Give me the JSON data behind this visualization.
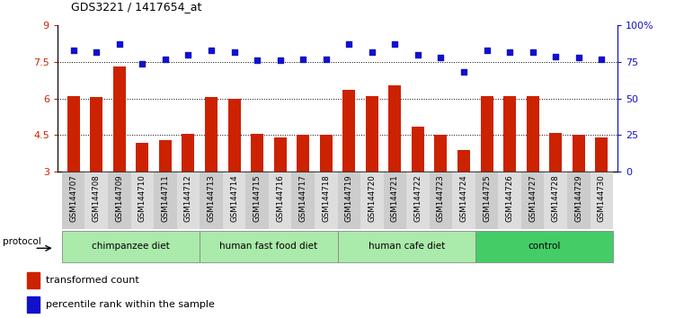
{
  "title": "GDS3221 / 1417654_at",
  "samples": [
    "GSM144707",
    "GSM144708",
    "GSM144709",
    "GSM144710",
    "GSM144711",
    "GSM144712",
    "GSM144713",
    "GSM144714",
    "GSM144715",
    "GSM144716",
    "GSM144717",
    "GSM144718",
    "GSM144719",
    "GSM144720",
    "GSM144721",
    "GSM144722",
    "GSM144723",
    "GSM144724",
    "GSM144725",
    "GSM144726",
    "GSM144727",
    "GSM144728",
    "GSM144729",
    "GSM144730"
  ],
  "red_values": [
    6.1,
    6.05,
    7.3,
    4.2,
    4.3,
    4.55,
    6.05,
    6.0,
    4.55,
    4.4,
    4.5,
    4.5,
    6.35,
    6.1,
    6.55,
    4.85,
    4.5,
    3.9,
    6.1,
    6.1,
    6.1,
    4.6,
    4.5,
    4.4
  ],
  "blue_values": [
    83,
    82,
    87,
    74,
    77,
    80,
    83,
    82,
    76,
    76,
    77,
    77,
    87,
    82,
    87,
    80,
    78,
    68,
    83,
    82,
    82,
    79,
    78,
    77
  ],
  "groups": [
    {
      "label": "chimpanzee diet",
      "start": 0,
      "end": 6
    },
    {
      "label": "human fast food diet",
      "start": 6,
      "end": 12
    },
    {
      "label": "human cafe diet",
      "start": 12,
      "end": 18
    },
    {
      "label": "control",
      "start": 18,
      "end": 24
    }
  ],
  "group_colors": [
    "#AAEAAA",
    "#AAEAAA",
    "#AAEAAA",
    "#44CC66"
  ],
  "ylim_left": [
    3,
    9
  ],
  "ylim_right": [
    0,
    100
  ],
  "yticks_left": [
    3,
    4.5,
    6,
    7.5,
    9
  ],
  "yticks_right": [
    0,
    25,
    50,
    75,
    100
  ],
  "ytick_labels_left": [
    "3",
    "4.5",
    "6",
    "7.5",
    "9"
  ],
  "ytick_labels_right": [
    "0",
    "25",
    "50",
    "75",
    "100%"
  ],
  "hlines": [
    4.5,
    6.0,
    7.5
  ],
  "bar_color": "#CC2200",
  "dot_color": "#1111CC",
  "bar_width": 0.55,
  "plot_bg": "#FFFFFF",
  "fig_bg": "#FFFFFF"
}
